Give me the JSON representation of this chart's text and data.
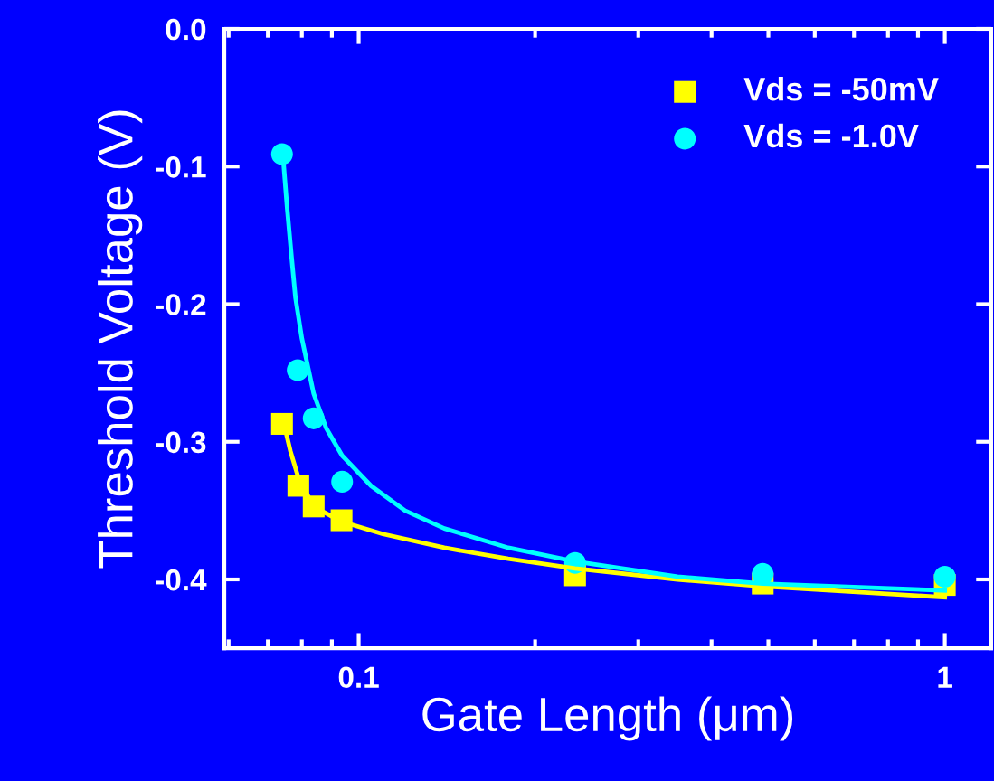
{
  "chart_data": {
    "type": "scatter",
    "xlabel": "Gate Length (μm)",
    "ylabel": "Threshold Voltage (V)",
    "log": "x",
    "xlim": [
      0.059,
      1.2
    ],
    "xticks": [
      0.1,
      1
    ],
    "ylim": [
      -0.45,
      0.0
    ],
    "yticks": [
      {
        "value": 0.0,
        "label": "0.0"
      },
      {
        "value": -0.1,
        "label": "-0.1"
      },
      {
        "value": -0.2,
        "label": "-0.2"
      },
      {
        "value": -0.3,
        "label": "-0.3"
      },
      {
        "value": -0.4,
        "label": "-0.4"
      }
    ],
    "grid": false,
    "legend": "top right",
    "series": [
      {
        "name": "Vds = -50mV",
        "marker": "square",
        "color": "#ffff00",
        "x": [
          0.074,
          0.0789,
          0.0838,
          0.0935,
          0.234,
          0.489,
          1.0
        ],
        "values": [
          -0.287,
          -0.332,
          -0.347,
          -0.357,
          -0.397,
          -0.403,
          -0.404
        ]
      },
      {
        "name": "Vds = -1.0V",
        "marker": "circle",
        "color": "#00ffff",
        "x": [
          0.074,
          0.0787,
          0.0838,
          0.0937,
          0.234,
          0.489,
          1.0
        ],
        "values": [
          -0.091,
          -0.248,
          -0.283,
          -0.329,
          -0.388,
          -0.396,
          -0.398
        ]
      },
      {
        "type": "line",
        "marker": "none",
        "color": "#ffff00",
        "x": [
          0.074,
          0.0765,
          0.0789,
          0.0838,
          0.0935,
          0.11,
          0.14,
          0.18,
          0.234,
          0.35,
          0.489,
          1.0
        ],
        "values": [
          -0.281,
          -0.307,
          -0.326,
          -0.347,
          -0.358,
          -0.367,
          -0.377,
          -0.385,
          -0.392,
          -0.4,
          -0.405,
          -0.413
        ]
      },
      {
        "type": "line",
        "marker": "none",
        "color": "#00ffff",
        "x": [
          0.0743,
          0.0755,
          0.0768,
          0.078,
          0.08,
          0.0838,
          0.088,
          0.0937,
          0.105,
          0.12,
          0.14,
          0.18,
          0.234,
          0.35,
          0.489,
          1.0
        ],
        "values": [
          -0.093,
          -0.13,
          -0.165,
          -0.195,
          -0.225,
          -0.265,
          -0.29,
          -0.31,
          -0.332,
          -0.35,
          -0.363,
          -0.377,
          -0.387,
          -0.398,
          -0.403,
          -0.408
        ]
      }
    ]
  }
}
